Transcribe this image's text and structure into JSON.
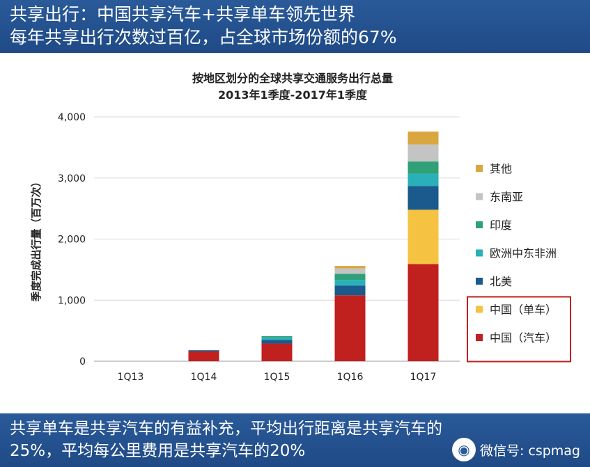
{
  "header": {
    "line1": "共享出行：中国共享汽车+共享单车领先世界",
    "line2": "每年共享出行次数过百亿，占全球市场份额的67%"
  },
  "footer": {
    "line1": "共享单车是共享汽车的有益补充，平均出行距离是共享汽车的",
    "line2": "25%，平均每公里费用是共享汽车的20%"
  },
  "watermark": {
    "icon": "wechat-icon",
    "text": "微信号: cspmag"
  },
  "chart_data": {
    "type": "bar",
    "stacked": true,
    "title": "按地区划分的全球共享交通服务出行总量",
    "subtitle": "2013年1季度-2017年1季度",
    "xlabel": "",
    "ylabel": "季度完成出行量（百万次）",
    "ylim": [
      0,
      4000
    ],
    "yticks": [
      0,
      1000,
      2000,
      3000,
      4000
    ],
    "ytick_labels": [
      "0",
      "1,000",
      "2,000",
      "3,000",
      "4,000"
    ],
    "categories": [
      "1Q13",
      "1Q14",
      "1Q15",
      "1Q16",
      "1Q17"
    ],
    "series": [
      {
        "name": "中国（汽车）",
        "color": "#c0201e",
        "values": [
          0,
          160,
          290,
          1080,
          1590
        ]
      },
      {
        "name": "中国（单车）",
        "color": "#f5c242",
        "values": [
          0,
          0,
          0,
          0,
          890
        ]
      },
      {
        "name": "北美",
        "color": "#1b5a8c",
        "values": [
          0,
          20,
          60,
          160,
          390
        ]
      },
      {
        "name": "欧洲中东非洲",
        "color": "#2ab0b8",
        "values": [
          0,
          0,
          40,
          90,
          200
        ]
      },
      {
        "name": "印度",
        "color": "#2fa077",
        "values": [
          0,
          0,
          20,
          100,
          200
        ]
      },
      {
        "name": "东南亚",
        "color": "#c4c4c4",
        "values": [
          0,
          0,
          0,
          90,
          280
        ]
      },
      {
        "name": "其他",
        "color": "#d9a640",
        "values": [
          0,
          0,
          0,
          40,
          210
        ]
      }
    ],
    "legend_order": [
      "其他",
      "东南亚",
      "印度",
      "欧洲中东非洲",
      "北美",
      "中国（单车）",
      "中国（汽车）"
    ],
    "legend_highlight": [
      "中国（单车）",
      "中国（汽车）"
    ],
    "highlight_color": "#c0201e"
  }
}
